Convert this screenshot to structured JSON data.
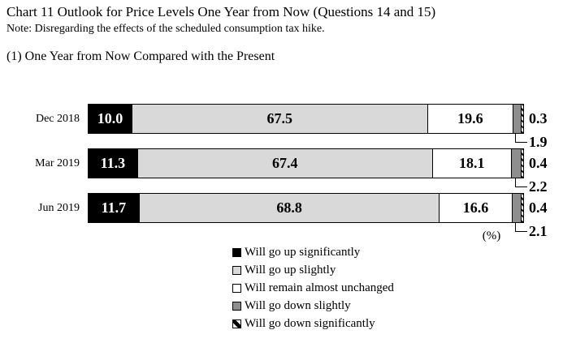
{
  "header": {
    "title": "Chart 11 Outlook for Price Levels One Year from Now (Questions 14 and 15)",
    "note": "Note: Disregarding the effects of the scheduled consumption tax hike.",
    "section": "(1) One Year from Now Compared with the Present"
  },
  "chart_data": {
    "type": "bar",
    "variant": "horizontal-stacked",
    "unit_label": "(%)",
    "xlim": [
      0,
      100
    ],
    "grid": false,
    "legend_position": "bottom-center",
    "categories": [
      "Dec 2018",
      "Mar 2019",
      "Jun 2019"
    ],
    "series": [
      {
        "name": "Will go up significantly",
        "swatch": "#000000",
        "text_color": "#ffffff",
        "label_position": "inside",
        "values": [
          10.0,
          11.3,
          11.7
        ]
      },
      {
        "name": "Will go up slightly",
        "swatch": "#d9d9d9",
        "text_color": "#000000",
        "label_position": "inside",
        "values": [
          67.5,
          67.4,
          68.8
        ]
      },
      {
        "name": "Will remain almost unchanged",
        "swatch": "#ffffff",
        "text_color": "#000000",
        "label_position": "inside",
        "values": [
          19.6,
          18.1,
          16.6
        ]
      },
      {
        "name": "Will go down slightly",
        "swatch": "#8e8e8e",
        "text_color": "#000000",
        "label_position": "callout-below",
        "values": [
          1.9,
          2.2,
          2.1
        ]
      },
      {
        "name": "Will go down significantly",
        "swatch": "hatch",
        "text_color": "#000000",
        "label_position": "right",
        "values": [
          0.3,
          0.4,
          0.4
        ]
      }
    ]
  }
}
